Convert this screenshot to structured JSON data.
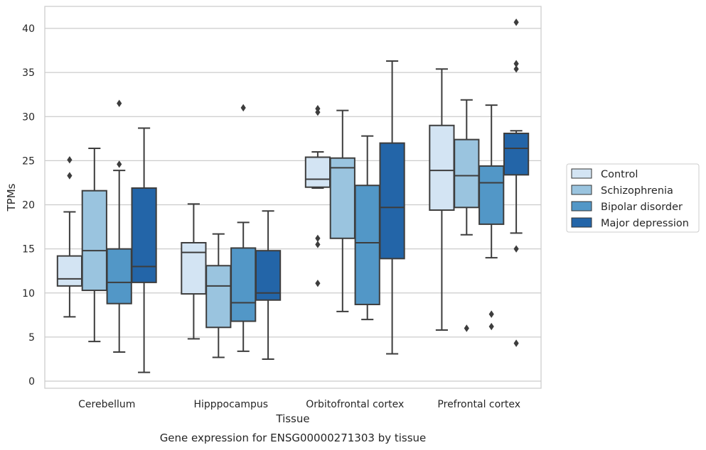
{
  "caption": "Gene expression for ENSG00000271303 by tissue",
  "chart_data": {
    "type": "boxplot",
    "xlabel": "Tissue",
    "ylabel": "TPMs",
    "ylim": [
      -0.8,
      42.5
    ],
    "yticks": [
      0,
      5,
      10,
      15,
      20,
      25,
      30,
      35,
      40
    ],
    "grid": "horizontal",
    "legend_position": "center-right",
    "categories": [
      "Cerebellum",
      "Hipppocampus",
      "Orbitofrontal cortex",
      "Prefrontal cortex"
    ],
    "series": [
      {
        "name": "Control",
        "color": "#d3e4f3",
        "boxes": [
          {
            "whislo": 7.3,
            "q1": 10.8,
            "med": 11.6,
            "q3": 14.2,
            "whishi": 19.2,
            "fliers": [
              25.1,
              23.3
            ]
          },
          {
            "whislo": 4.8,
            "q1": 9.9,
            "med": 14.6,
            "q3": 15.7,
            "whishi": 20.1,
            "fliers": []
          },
          {
            "whislo": 21.9,
            "q1": 22.0,
            "med": 22.9,
            "q3": 25.4,
            "whishi": 26.0,
            "fliers": [
              30.9,
              30.5,
              16.2,
              15.5,
              11.1
            ]
          },
          {
            "whislo": 5.8,
            "q1": 19.4,
            "med": 23.9,
            "q3": 29.0,
            "whishi": 35.4,
            "fliers": []
          }
        ]
      },
      {
        "name": "Schizophrenia",
        "color": "#9ac4df",
        "boxes": [
          {
            "whislo": 4.5,
            "q1": 10.3,
            "med": 14.8,
            "q3": 21.6,
            "whishi": 26.4,
            "fliers": []
          },
          {
            "whislo": 2.7,
            "q1": 6.1,
            "med": 10.8,
            "q3": 13.1,
            "whishi": 16.7,
            "fliers": []
          },
          {
            "whislo": 7.9,
            "q1": 16.2,
            "med": 24.2,
            "q3": 25.3,
            "whishi": 30.7,
            "fliers": []
          },
          {
            "whislo": 16.6,
            "q1": 19.7,
            "med": 23.3,
            "q3": 27.4,
            "whishi": 31.9,
            "fliers": [
              6.0
            ]
          }
        ]
      },
      {
        "name": "Bipolar disorder",
        "color": "#5297c7",
        "boxes": [
          {
            "whislo": 3.3,
            "q1": 8.8,
            "med": 11.2,
            "q3": 15.0,
            "whishi": 23.9,
            "fliers": [
              31.5,
              24.6
            ]
          },
          {
            "whislo": 3.4,
            "q1": 6.8,
            "med": 8.9,
            "q3": 15.1,
            "whishi": 18.0,
            "fliers": [
              31.0
            ]
          },
          {
            "whislo": 7.0,
            "q1": 8.7,
            "med": 15.7,
            "q3": 22.2,
            "whishi": 27.8,
            "fliers": []
          },
          {
            "whislo": 14.0,
            "q1": 17.8,
            "med": 22.5,
            "q3": 24.4,
            "whishi": 31.3,
            "fliers": [
              7.6,
              6.2
            ]
          }
        ]
      },
      {
        "name": "Major depression",
        "color": "#2365a8",
        "boxes": [
          {
            "whislo": 1.0,
            "q1": 11.2,
            "med": 13.0,
            "q3": 21.9,
            "whishi": 28.7,
            "fliers": []
          },
          {
            "whislo": 2.5,
            "q1": 9.2,
            "med": 10.0,
            "q3": 14.8,
            "whishi": 19.3,
            "fliers": []
          },
          {
            "whislo": 3.1,
            "q1": 13.9,
            "med": 19.7,
            "q3": 27.0,
            "whishi": 36.3,
            "fliers": []
          },
          {
            "whislo": 16.8,
            "q1": 23.4,
            "med": 26.4,
            "q3": 28.1,
            "whishi": 28.4,
            "fliers": [
              40.7,
              36.0,
              35.4,
              15.0,
              4.3
            ]
          }
        ]
      }
    ]
  }
}
